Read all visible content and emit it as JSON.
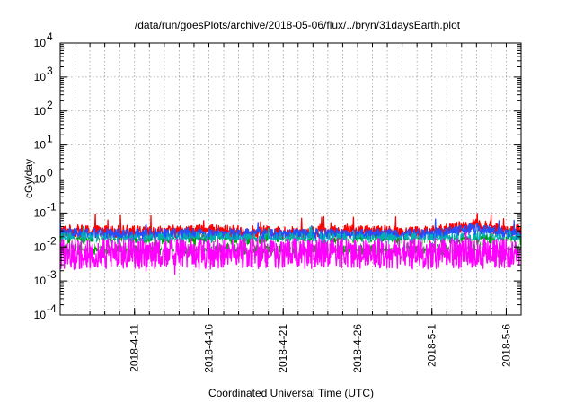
{
  "chart_data": {
    "type": "line",
    "title": "/data/run/goesPlots/archive/2018-05-06/flux/../bryn/31daysEarth.plot",
    "xlabel": "Coordinated Universal Time (UTC)",
    "ylabel": "cGy/day",
    "yscale": "log",
    "ylim": [
      0.0001,
      10000
    ],
    "y_ticks": [
      {
        "mant": "10",
        "exp": "-4",
        "value": 0.0001
      },
      {
        "mant": "10",
        "exp": "-3",
        "value": 0.001
      },
      {
        "mant": "10",
        "exp": "-2",
        "value": 0.01
      },
      {
        "mant": "10",
        "exp": "-1",
        "value": 0.1
      },
      {
        "mant": "10",
        "exp": "0",
        "value": 1
      },
      {
        "mant": "10",
        "exp": "1",
        "value": 10
      },
      {
        "mant": "10",
        "exp": "2",
        "value": 100
      },
      {
        "mant": "10",
        "exp": "3",
        "value": 1000
      },
      {
        "mant": "10",
        "exp": "4",
        "value": 10000
      }
    ],
    "xlim": [
      "2018-04-06",
      "2018-05-07"
    ],
    "x_ticks": [
      "2018-4-11",
      "2018-4-16",
      "2018-4-21",
      "2018-4-26",
      "2018-5-1",
      "2018-5-6"
    ],
    "grid": true,
    "series": [
      {
        "color": "#ff0000",
        "base": 0.028,
        "noise": 0.18,
        "spike": 0.35,
        "x": [
          "2018-04-06",
          "2018-04-11",
          "2018-04-16",
          "2018-04-21",
          "2018-04-26",
          "2018-05-01",
          "2018-05-04",
          "2018-05-06"
        ],
        "values": [
          0.03,
          0.028,
          0.03,
          0.027,
          0.029,
          0.028,
          0.045,
          0.03
        ]
      },
      {
        "color": "#2050ff",
        "base": 0.024,
        "noise": 0.16,
        "spike": 0.3,
        "x": [
          "2018-04-06",
          "2018-04-11",
          "2018-04-16",
          "2018-04-21",
          "2018-04-26",
          "2018-05-01",
          "2018-05-04",
          "2018-05-06"
        ],
        "values": [
          0.025,
          0.024,
          0.025,
          0.023,
          0.024,
          0.024,
          0.035,
          0.025
        ]
      },
      {
        "color": "#00b0b0",
        "base": 0.016,
        "noise": 0.22,
        "spike": 0.2,
        "x": [
          "2018-04-06",
          "2018-04-11",
          "2018-04-16",
          "2018-04-21",
          "2018-04-26",
          "2018-05-01",
          "2018-05-04",
          "2018-05-06"
        ],
        "values": [
          0.016,
          0.015,
          0.016,
          0.015,
          0.016,
          0.015,
          0.017,
          0.016
        ]
      },
      {
        "color": "#00a000",
        "base": 0.011,
        "noise": 0.25,
        "spike": 0.15,
        "x": [
          "2018-04-06",
          "2018-04-11",
          "2018-04-16",
          "2018-04-21",
          "2018-04-26",
          "2018-05-01",
          "2018-05-04",
          "2018-05-06"
        ],
        "values": [
          0.011,
          0.01,
          0.011,
          0.01,
          0.011,
          0.01,
          0.012,
          0.011
        ]
      },
      {
        "color": "#ffffff",
        "base": 0.012,
        "noise": 0.15,
        "spike": 0.1,
        "x": [
          "2018-04-06",
          "2018-04-11",
          "2018-04-16",
          "2018-04-21",
          "2018-04-26",
          "2018-05-01",
          "2018-05-04",
          "2018-05-06"
        ],
        "values": [
          0.012,
          0.012,
          0.012,
          0.012,
          0.012,
          0.012,
          0.012,
          0.012
        ]
      },
      {
        "color": "#ff00ff",
        "base": 0.0065,
        "noise": 0.45,
        "spike": 0.2,
        "x": [
          "2018-04-06",
          "2018-04-11",
          "2018-04-16",
          "2018-04-21",
          "2018-04-26",
          "2018-05-01",
          "2018-05-04",
          "2018-05-06"
        ],
        "values": [
          0.006,
          0.0065,
          0.0062,
          0.0065,
          0.0064,
          0.0063,
          0.0066,
          0.0065
        ]
      }
    ]
  }
}
